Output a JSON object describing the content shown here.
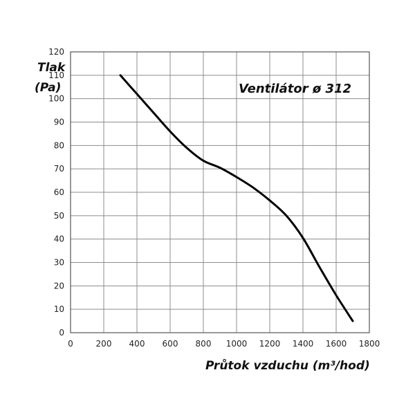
{
  "chart_data": {
    "type": "line",
    "title": "Ventilátor ø 312",
    "xlabel": "Průtok vzduchu (m³/hod)",
    "ylabel_line1": "Tlak",
    "ylabel_line2": "(Pa)",
    "xlim": [
      0,
      1800
    ],
    "ylim": [
      0,
      120
    ],
    "x_ticks": [
      0,
      200,
      400,
      600,
      800,
      1000,
      1200,
      1400,
      1600,
      1800
    ],
    "y_ticks": [
      0,
      10,
      20,
      30,
      40,
      50,
      60,
      70,
      80,
      90,
      100,
      110,
      120
    ],
    "grid": true,
    "series": [
      {
        "color": "#000000",
        "x": [
          300,
          400,
          500,
          600,
          700,
          800,
          900,
          1000,
          1100,
          1200,
          1300,
          1400,
          1500,
          1600,
          1700
        ],
        "y": [
          110,
          102,
          94,
          86,
          79,
          73.5,
          70.5,
          66.5,
          62,
          56.5,
          50,
          40.5,
          28,
          16,
          5
        ]
      }
    ]
  }
}
